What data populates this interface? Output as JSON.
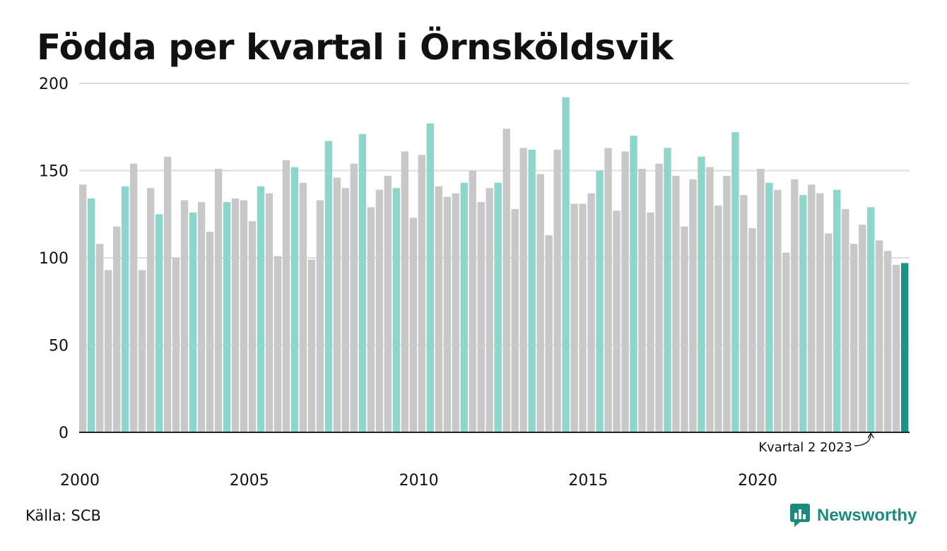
{
  "title": "Födda per kvartal i Örnsköldsvik",
  "source": "Källa: SCB",
  "brand": {
    "name": "Newsworthy",
    "icon": "newsworthy-logo-icon"
  },
  "colors": {
    "default_bar": "#c8c8c8",
    "q2_bar": "#8dd6cc",
    "latest_bar": "#1a9485",
    "grid": "#dddddd",
    "axis": "#222222",
    "brand": "#1d8a7e"
  },
  "chart_data": {
    "type": "bar",
    "annotation": "Kvartal 2 2023",
    "ylim": [
      0,
      200
    ],
    "yticks": [
      0,
      50,
      100,
      150,
      200
    ],
    "xtick_labels": [
      "2000",
      "2005",
      "2010",
      "2015",
      "2020"
    ],
    "grid": true,
    "start": "2000 Q1",
    "end": "2024 Q2",
    "highlight": "Q2 bars highlighted; latest quarter emphasized",
    "values": [
      142,
      134,
      108,
      93,
      118,
      141,
      154,
      93,
      140,
      125,
      158,
      100,
      133,
      126,
      132,
      115,
      151,
      132,
      134,
      133,
      121,
      141,
      137,
      101,
      156,
      152,
      143,
      99,
      133,
      167,
      146,
      140,
      154,
      171,
      129,
      139,
      147,
      140,
      161,
      123,
      159,
      177,
      141,
      135,
      137,
      143,
      150,
      132,
      140,
      143,
      174,
      128,
      163,
      162,
      148,
      113,
      162,
      192,
      131,
      131,
      137,
      150,
      163,
      127,
      161,
      170,
      151,
      126,
      154,
      163,
      147,
      118,
      145,
      158,
      152,
      130,
      147,
      172,
      136,
      117,
      151,
      143,
      139,
      103,
      145,
      136,
      142,
      137,
      114,
      139,
      128,
      108,
      119,
      129,
      110,
      104,
      96,
      97
    ]
  }
}
